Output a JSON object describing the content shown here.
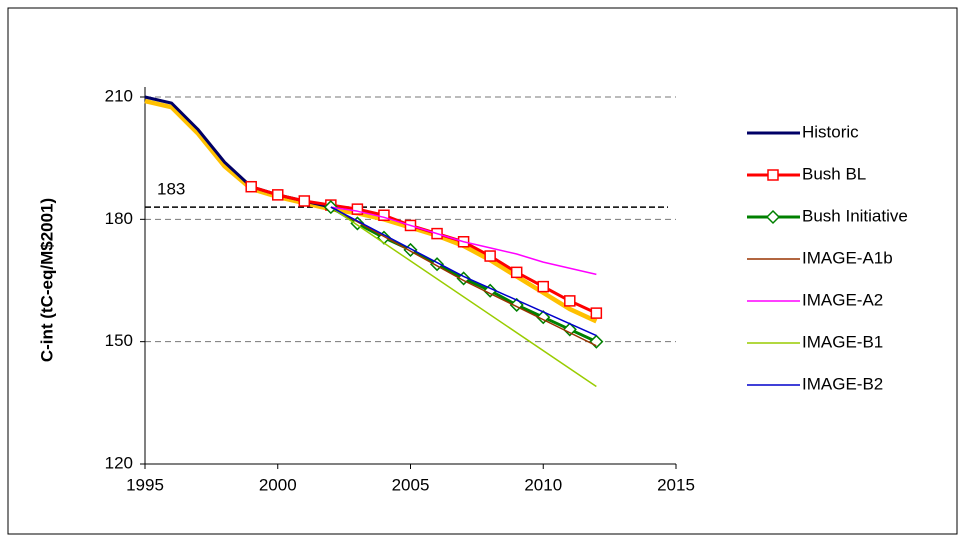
{
  "chart_data": {
    "type": "line",
    "y_label": "C-int (tC-eq/M$2001)",
    "xlim": [
      1995,
      2015
    ],
    "xticks": [
      1995,
      2000,
      2005,
      2010,
      2015
    ],
    "ylim": [
      120,
      210
    ],
    "yticks": [
      120,
      150,
      180,
      210
    ],
    "grid": true,
    "legend": "right",
    "hline": 183,
    "series": [
      {
        "color": "#ffc000",
        "width": 4.5,
        "x": [
          1995,
          1996,
          1997,
          1998,
          1999,
          2000,
          2001,
          2002,
          2003,
          2004,
          2005,
          2006,
          2007,
          2008,
          2009,
          2010,
          2011,
          2012
        ],
        "values": [
          209,
          207.5,
          201,
          193,
          187.5,
          185.5,
          184,
          182.5,
          181.5,
          180,
          178,
          176,
          173.5,
          170,
          166,
          162,
          158,
          155
        ]
      },
      {
        "name": "Historic",
        "color": "#000066",
        "width": 3,
        "x": [
          1995,
          1996,
          1997,
          1998,
          1999,
          2000,
          2001,
          2002
        ],
        "values": [
          210,
          208.5,
          202,
          194,
          188,
          186,
          184.5,
          183
        ]
      },
      {
        "name": "Bush BL",
        "color": "#ff0000",
        "width": 3,
        "marker": "square",
        "x": [
          1999,
          2000,
          2001,
          2002,
          2003,
          2004,
          2005,
          2006,
          2007,
          2008,
          2009,
          2010,
          2011,
          2012
        ],
        "values": [
          188,
          186,
          184.5,
          183.5,
          182.5,
          181,
          178.5,
          176.5,
          174.5,
          171,
          167,
          163.5,
          160,
          157
        ]
      },
      {
        "name": "Bush Initiative",
        "color": "#008000",
        "width": 3,
        "marker": "diamond",
        "x": [
          2002,
          2003,
          2004,
          2005,
          2006,
          2007,
          2008,
          2009,
          2010,
          2011,
          2012
        ],
        "values": [
          183,
          179,
          175.5,
          172.5,
          169,
          165.5,
          162.5,
          159,
          156,
          153,
          150
        ]
      },
      {
        "name": "IMAGE-A1b",
        "color": "#993300",
        "width": 1.5,
        "x": [
          2002,
          2007,
          2012
        ],
        "values": [
          183,
          165,
          149
        ]
      },
      {
        "name": "IMAGE-A2",
        "color": "#ff00ff",
        "width": 1.5,
        "x": [
          2002,
          2003,
          2004,
          2005,
          2006,
          2007,
          2008,
          2009,
          2010,
          2011,
          2012
        ],
        "values": [
          183,
          182,
          180.5,
          178.5,
          176.5,
          174.5,
          173,
          171.5,
          169.5,
          168,
          166.5
        ]
      },
      {
        "name": "IMAGE-B1",
        "color": "#99cc00",
        "width": 1.5,
        "x": [
          2002,
          2012
        ],
        "values": [
          183,
          139
        ]
      },
      {
        "name": "IMAGE-B2",
        "color": "#0000cc",
        "width": 1.5,
        "x": [
          2002,
          2007,
          2012
        ],
        "values": [
          183,
          166,
          151.5
        ]
      }
    ]
  }
}
